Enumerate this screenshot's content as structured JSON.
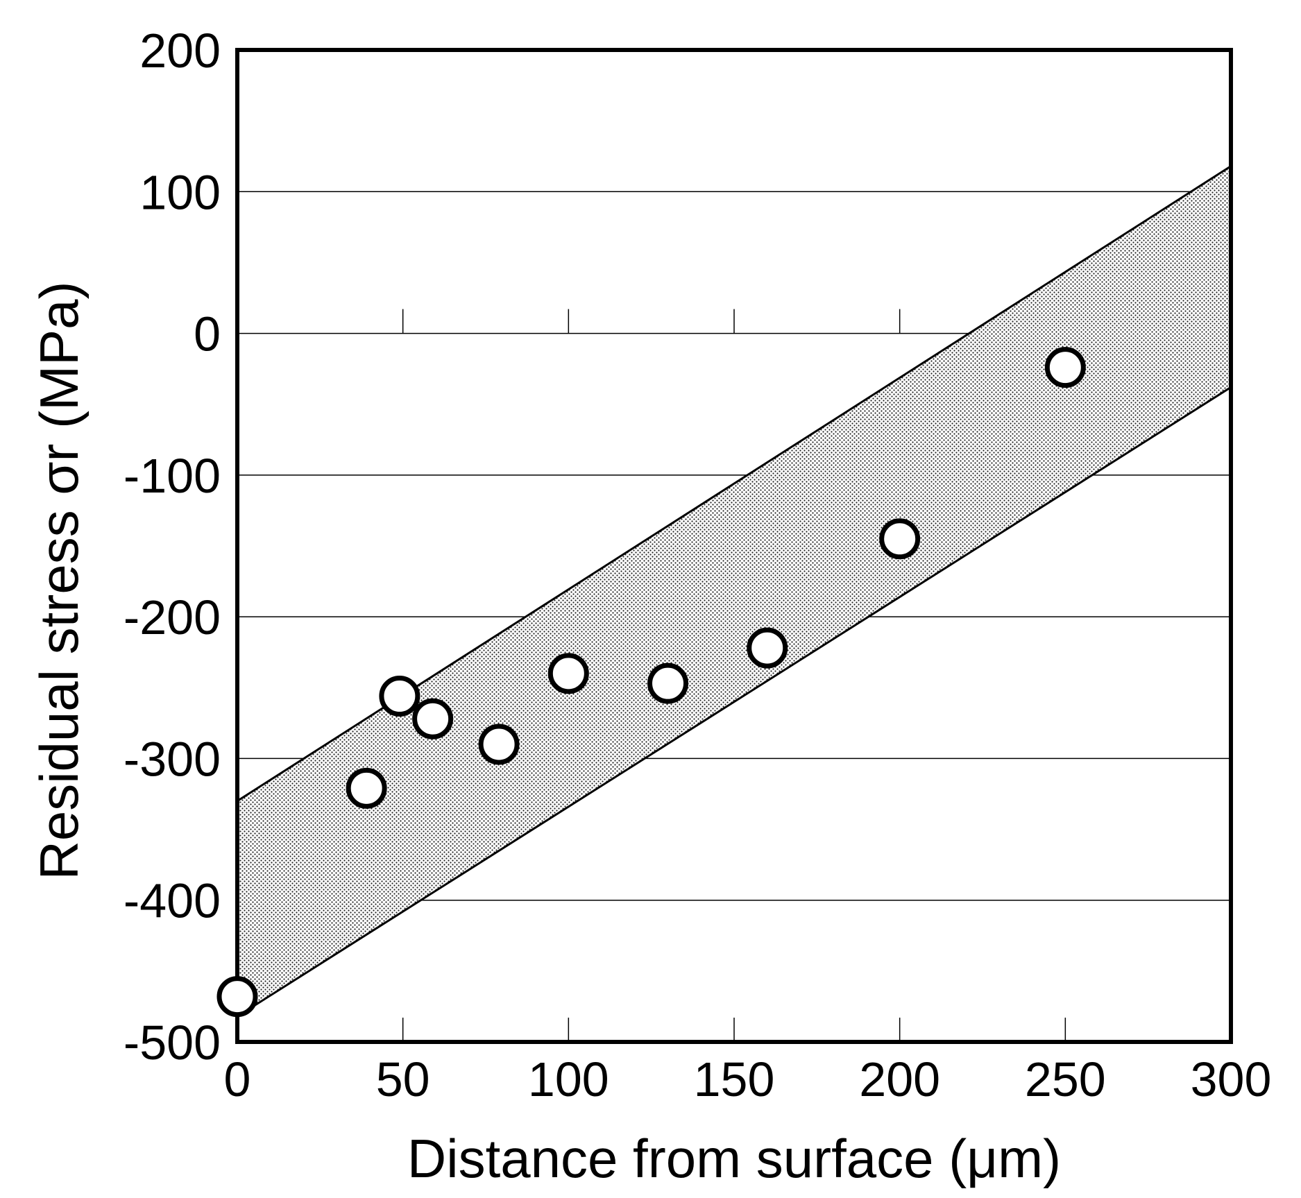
{
  "chart_data": {
    "type": "scatter",
    "xlabel": "Distance from surface (μm)",
    "ylabel": "Residual stress σr (MPa)",
    "xlim": [
      0,
      300
    ],
    "ylim": [
      -500,
      200
    ],
    "x_ticks": [
      0,
      50,
      100,
      150,
      200,
      250,
      300
    ],
    "y_ticks": [
      200,
      100,
      0,
      -100,
      -200,
      -300,
      -400,
      -500
    ],
    "grid": "horizontal",
    "points": [
      {
        "x": 0,
        "y": -468
      },
      {
        "x": 39,
        "y": -321
      },
      {
        "x": 49,
        "y": -256
      },
      {
        "x": 59,
        "y": -272
      },
      {
        "x": 79,
        "y": -290
      },
      {
        "x": 100,
        "y": -240
      },
      {
        "x": 130,
        "y": -247
      },
      {
        "x": 160,
        "y": -222
      },
      {
        "x": 200,
        "y": -145
      },
      {
        "x": 250,
        "y": -24
      }
    ],
    "band": {
      "upper": {
        "x": [
          0,
          300
        ],
        "y": [
          -330,
          118
        ]
      },
      "lower": {
        "x": [
          0,
          300
        ],
        "y": [
          -482,
          -38
        ]
      }
    }
  }
}
